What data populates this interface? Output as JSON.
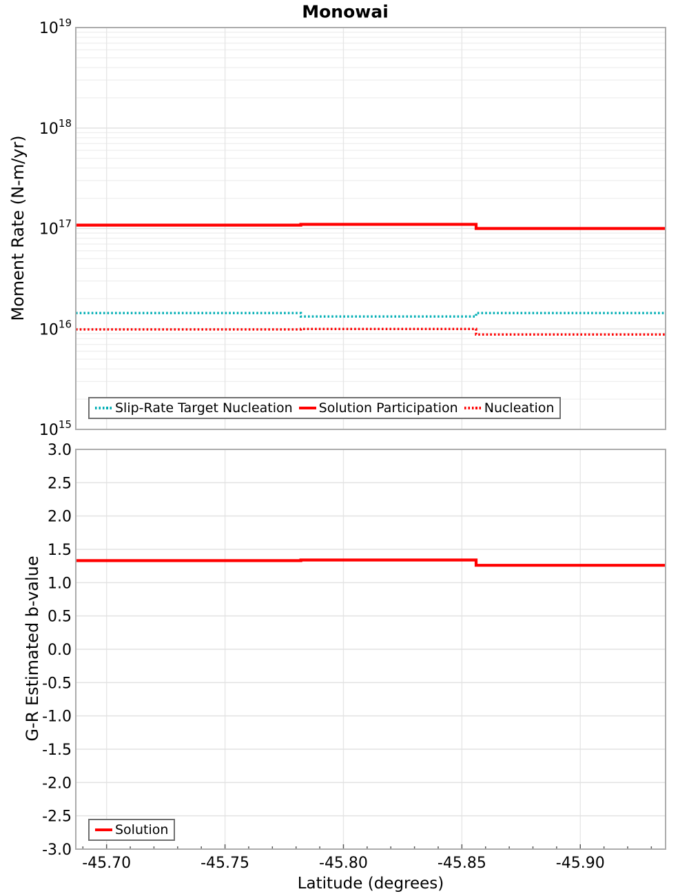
{
  "title": "Monowai",
  "colors": {
    "teal": "#00AEB4",
    "red": "#FF0000",
    "grid_minor": "#EFEFEF",
    "grid_major": "#E2E2E2",
    "grid_vertical": "#E6E6E6",
    "panel_border": "#ABABAB",
    "tick_mark": "#555555",
    "legend_border": "#6E6E6E",
    "text": "#000000"
  },
  "chart_data": [
    {
      "type": "line",
      "title": "Monowai",
      "ylabel": "Moment Rate (N-m/yr)",
      "yscale": "log",
      "ylim": [
        1000000000000000.0,
        1e+19
      ],
      "ytick_exponents": [
        19,
        18,
        17,
        16,
        15
      ],
      "xlim": [
        -45.687,
        -45.936
      ],
      "x_descending": true,
      "xticks": [
        -45.7,
        -45.75,
        -45.8,
        -45.85,
        -45.9
      ],
      "grid": "major+minor horizontal, vertical at x ticks",
      "legend_position": "inside bottom-left",
      "x_breakpoints": [
        -45.687,
        -45.782,
        -45.856,
        -45.936
      ],
      "series": [
        {
          "name": "Slip-Rate Target Nucleation",
          "color": "#00AEB4",
          "style": "dotted",
          "values": [
            1.44e+16,
            1.33e+16,
            1.44e+16
          ]
        },
        {
          "name": "Solution Participation",
          "color": "#FF0000",
          "style": "solid",
          "values": [
            1.08e+17,
            1.1e+17,
            1e+17
          ]
        },
        {
          "name": "Nucleation",
          "color": "#FF0000",
          "style": "dotted",
          "values": [
            9900000000000000.0,
            1e+16,
            8800000000000000.0
          ]
        }
      ]
    },
    {
      "type": "line",
      "ylabel": "G-R Estimated b-value",
      "xlabel": "Latitude (degrees)",
      "ylim": [
        -3.0,
        3.0
      ],
      "ytick_step": 0.5,
      "xlim": [
        -45.687,
        -45.936
      ],
      "x_descending": true,
      "xticks": [
        -45.7,
        -45.75,
        -45.8,
        -45.85,
        -45.9
      ],
      "xminor_step": 0.01,
      "grid": "major horizontal, vertical at x ticks",
      "legend_position": "inside bottom-left",
      "x_breakpoints": [
        -45.687,
        -45.782,
        -45.856,
        -45.936
      ],
      "series": [
        {
          "name": "Solution",
          "color": "#FF0000",
          "style": "solid",
          "values": [
            1.33,
            1.34,
            1.26
          ]
        }
      ]
    }
  ]
}
